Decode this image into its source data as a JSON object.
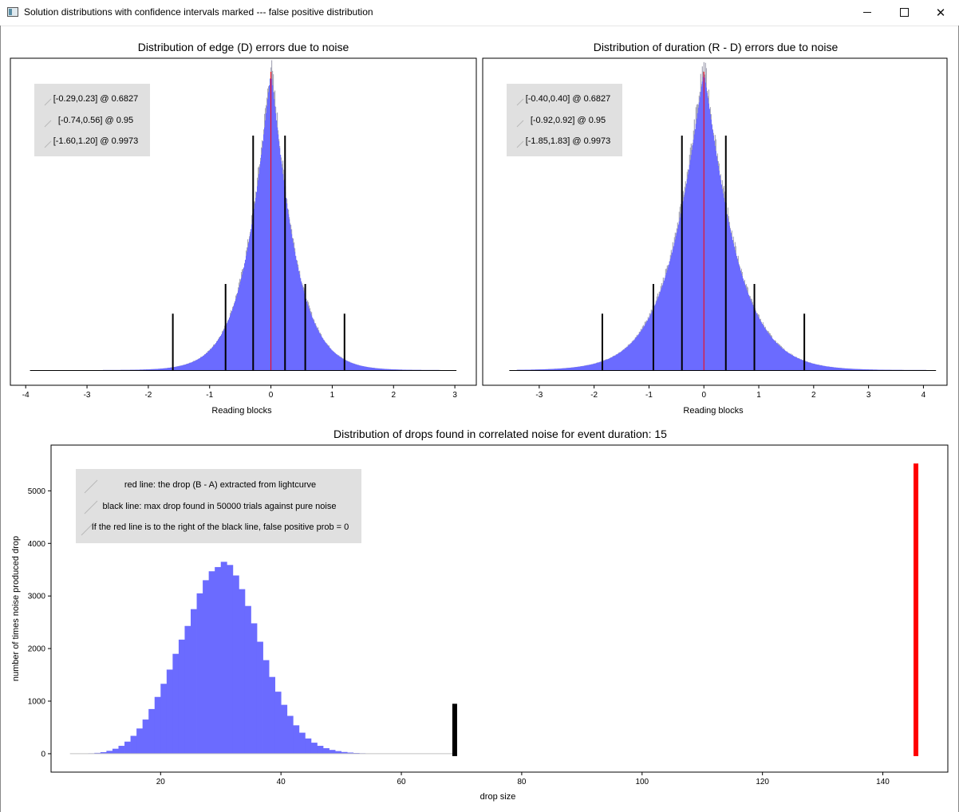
{
  "window": {
    "title": "Solution distributions with confidence intervals marked --- false positive distribution",
    "controls": {
      "minimize": "minimize",
      "maximize": "maximize",
      "close": "close"
    }
  },
  "chart_data": [
    {
      "id": "edge",
      "type": "histogram",
      "title": "Distribution of edge (D) errors due to noise",
      "xlabel": "Reading blocks",
      "ylabel": "",
      "xlim": [
        -4.25,
        3.35
      ],
      "x_ticks": [
        -4,
        -3,
        -2,
        -1,
        0,
        1,
        2,
        3
      ],
      "y_ticks": [],
      "grid": false,
      "legend_position": "top-left",
      "histogram": {
        "color": "#6b6bff",
        "center": 0.0,
        "spread_left": 0.42,
        "spread_right": 0.42,
        "peak_relative": 1.0,
        "range": [
          -3.8,
          3.0
        ]
      },
      "zero_marker": {
        "x": 0,
        "color": "#ff0000"
      },
      "intervals": [
        {
          "label": "[-0.29,0.23] @ 0.6827",
          "lo": -0.29,
          "hi": 0.23,
          "level": 0.6827,
          "bar_height": 0.75
        },
        {
          "label": "[-0.74,0.56] @ 0.95",
          "lo": -0.74,
          "hi": 0.56,
          "level": 0.95,
          "bar_height": 0.25
        },
        {
          "label": "[-1.60,1.20] @ 0.9973",
          "lo": -1.6,
          "hi": 1.2,
          "level": 0.9973,
          "bar_height": 0.15
        }
      ]
    },
    {
      "id": "duration",
      "type": "histogram",
      "title": "Distribution of duration (R - D) errors due to noise",
      "xlabel": "Reading blocks",
      "ylabel": "",
      "xlim": [
        -4.03,
        4.43
      ],
      "x_ticks": [
        -3,
        -2,
        -1,
        0,
        1,
        2,
        3,
        4
      ],
      "y_ticks": [],
      "grid": false,
      "legend_position": "top-left",
      "histogram": {
        "color": "#6b6bff",
        "center": 0.0,
        "spread_left": 0.62,
        "spread_right": 0.62,
        "peak_relative": 1.0,
        "range": [
          -3.4,
          4.2
        ]
      },
      "zero_marker": {
        "x": 0,
        "color": "#ff0000"
      },
      "intervals": [
        {
          "label": "[-0.40,0.40] @ 0.6827",
          "lo": -0.4,
          "hi": 0.4,
          "level": 0.6827,
          "bar_height": 0.75
        },
        {
          "label": "[-0.92,0.92] @ 0.95",
          "lo": -0.92,
          "hi": 0.92,
          "level": 0.95,
          "bar_height": 0.25
        },
        {
          "label": "[-1.85,1.83] @ 0.9973",
          "lo": -1.85,
          "hi": 1.83,
          "level": 0.9973,
          "bar_height": 0.15
        }
      ]
    },
    {
      "id": "drops",
      "type": "bar",
      "title": "Distribution of drops found in correlated noise for event duration: 15",
      "xlabel": "drop size",
      "ylabel": "number of times noise produced drop",
      "xlim": [
        1.8,
        150.8
      ],
      "ylim": [
        -350,
        5870
      ],
      "x_ticks": [
        20,
        40,
        60,
        80,
        100,
        120,
        140
      ],
      "y_ticks": [
        0,
        1000,
        2000,
        3000,
        4000,
        5000
      ],
      "grid": false,
      "legend_position": "top-left",
      "bar_color": "#6b6bff",
      "bins": {
        "x": [
          6,
          7,
          8,
          9,
          10,
          11,
          12,
          13,
          14,
          15,
          16,
          17,
          18,
          19,
          20,
          21,
          22,
          23,
          24,
          25,
          26,
          27,
          28,
          29,
          30,
          31,
          32,
          33,
          34,
          35,
          36,
          37,
          38,
          39,
          40,
          41,
          42,
          43,
          44,
          45,
          46,
          47,
          48,
          49,
          50,
          51,
          52,
          53,
          54,
          55,
          56,
          57,
          58,
          59,
          60,
          61,
          62,
          63,
          64,
          65,
          66,
          67,
          68,
          69
        ],
        "y": [
          2,
          4,
          8,
          16,
          30,
          55,
          95,
          150,
          230,
          340,
          480,
          650,
          850,
          1080,
          1330,
          1600,
          1900,
          2170,
          2430,
          2750,
          3050,
          3300,
          3470,
          3550,
          3650,
          3590,
          3390,
          3130,
          2810,
          2480,
          2130,
          1780,
          1460,
          1180,
          930,
          720,
          540,
          400,
          290,
          210,
          150,
          105,
          72,
          50,
          33,
          22,
          14,
          9,
          6,
          4,
          3,
          2,
          1,
          1,
          0,
          0,
          0,
          0,
          0,
          0,
          0,
          0,
          0,
          0
        ]
      },
      "legend": [
        "red line: the drop (B - A) extracted from lightcurve",
        "black line: max drop found in 50000 trials against pure noise",
        "If the red line is to the right of the black line, false positive prob = 0"
      ],
      "black_line": {
        "x": 69,
        "height": 950,
        "color": "#000000"
      },
      "red_line": {
        "x": 145.5,
        "height": 5520,
        "color": "#ff0000"
      }
    }
  ]
}
